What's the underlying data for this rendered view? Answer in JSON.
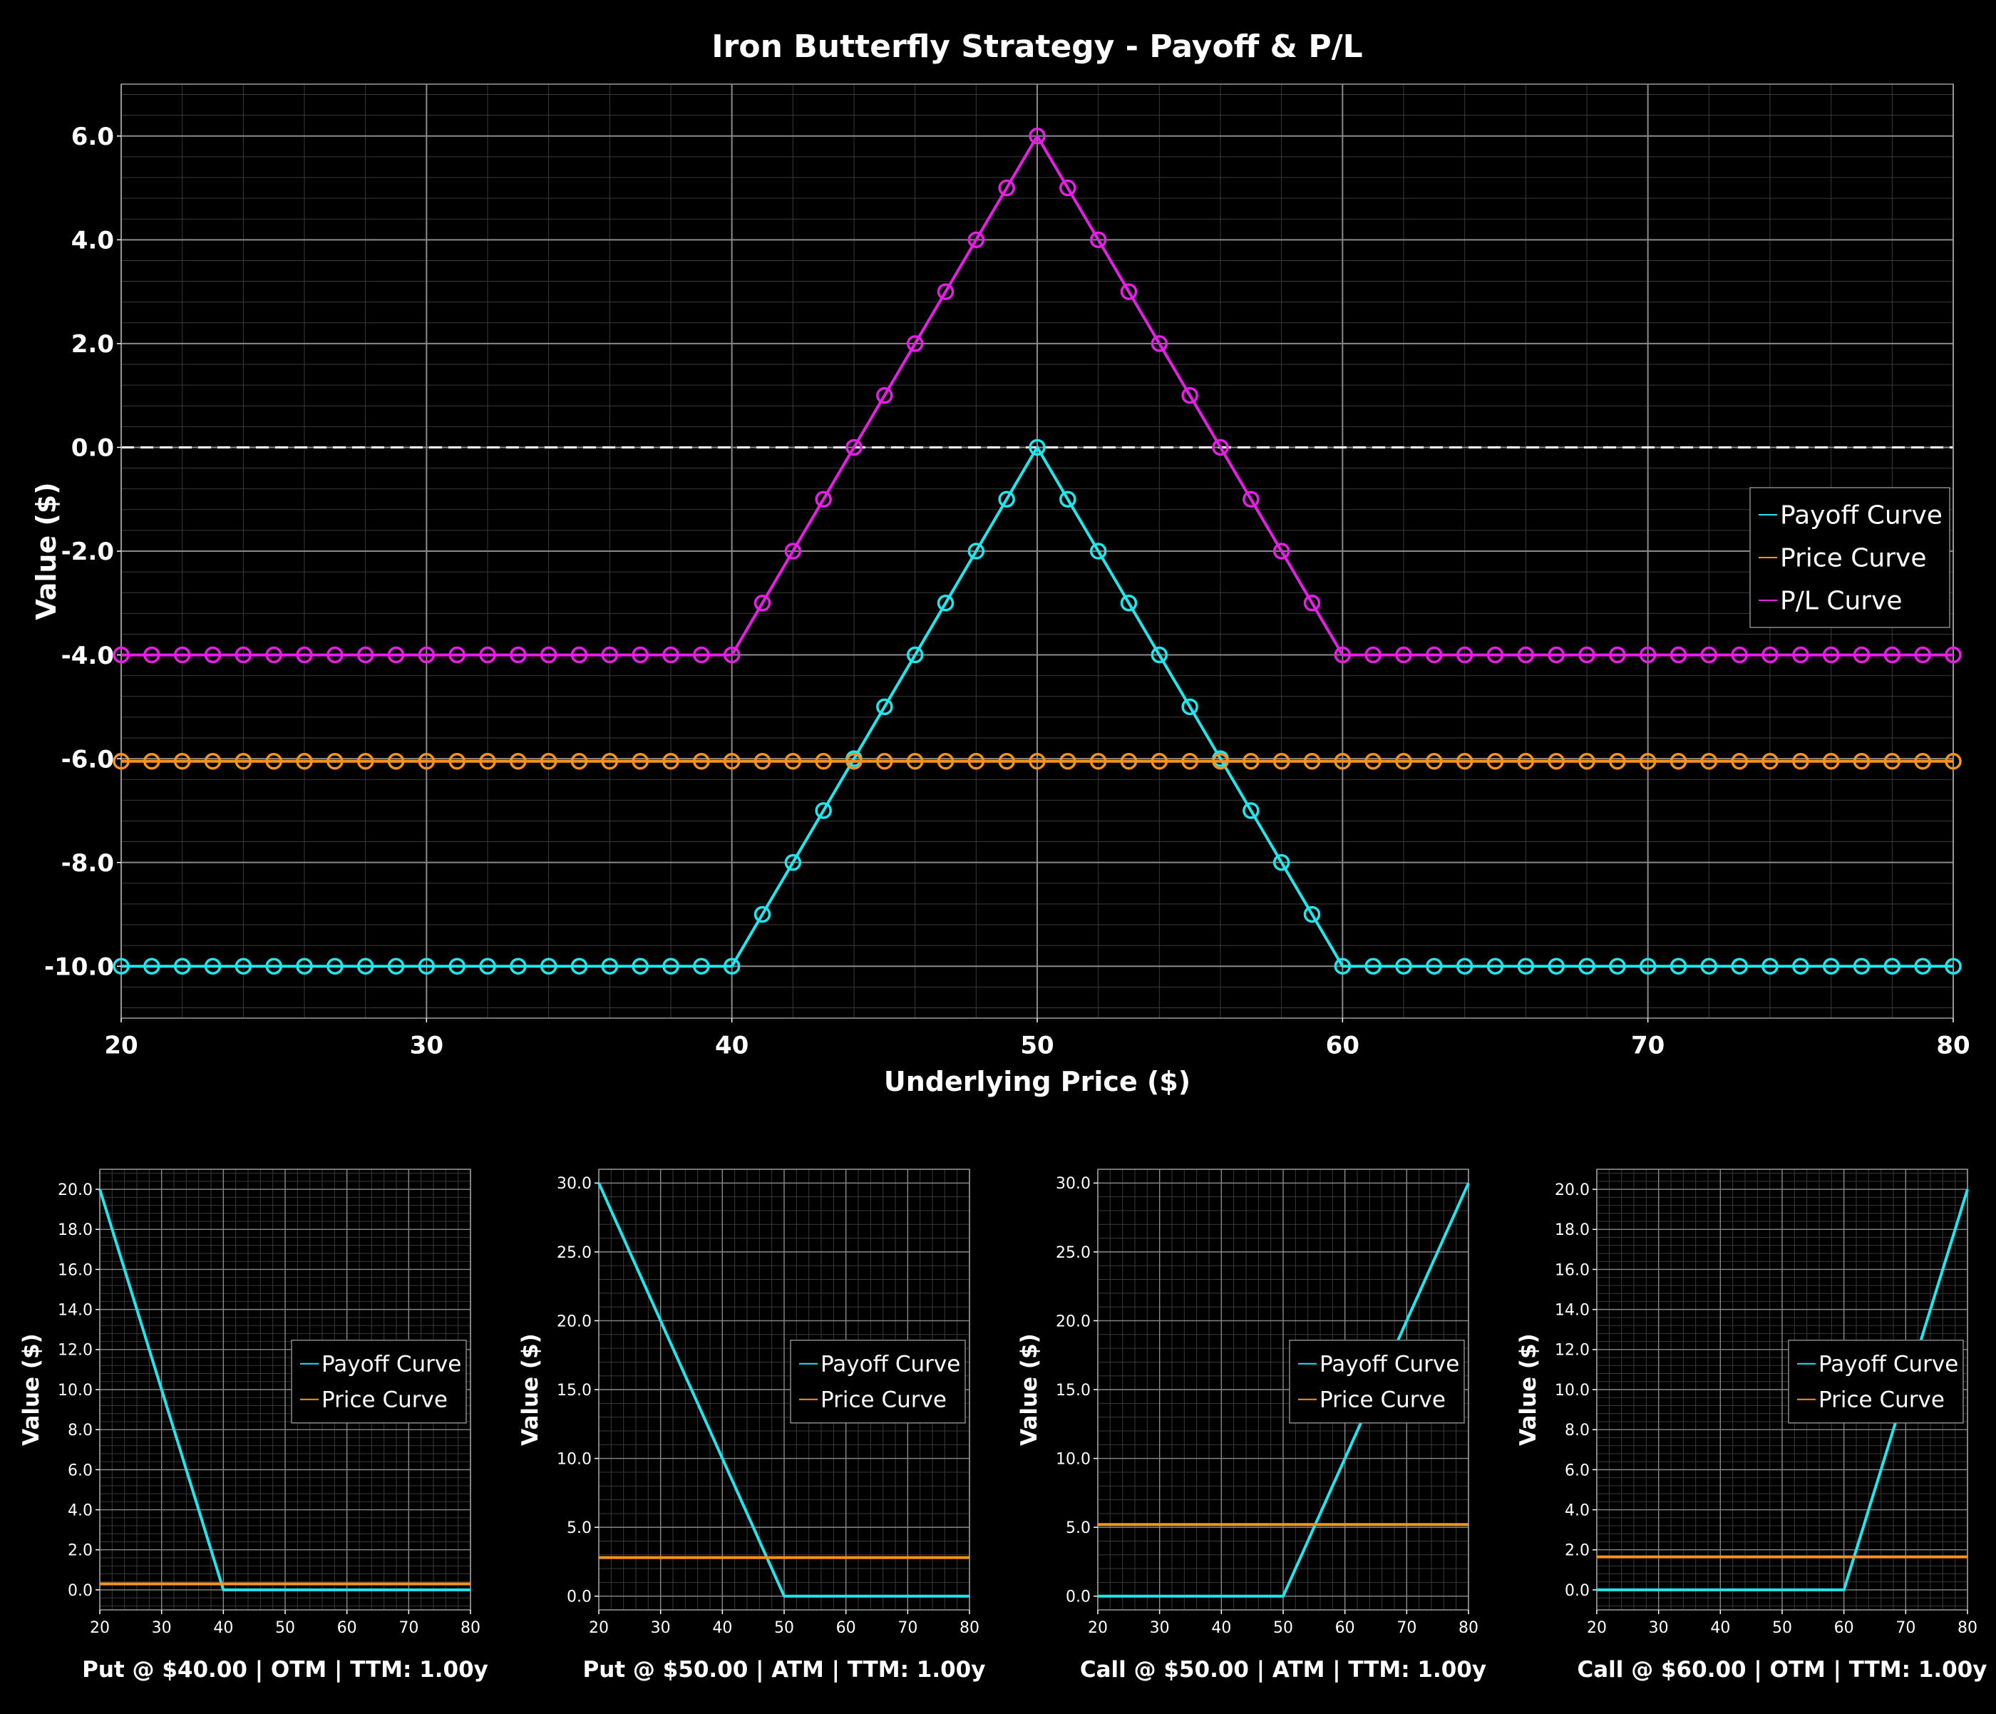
{
  "chart_data": [
    {
      "id": "main",
      "type": "line",
      "title": "Iron Butterfly Strategy - Payoff & P/L",
      "xlabel": "Underlying Price ($)",
      "ylabel": "Value ($)",
      "xlim": [
        20,
        80
      ],
      "ylim": [
        -11,
        7
      ],
      "xticks": [
        20,
        30,
        40,
        50,
        60,
        70,
        80
      ],
      "yticks": [
        -10,
        -8,
        -6,
        -4,
        -2,
        0,
        2,
        4,
        6
      ],
      "grid": true,
      "zero_line": true,
      "legend_position": "center-right",
      "markers": true,
      "series": [
        {
          "name": "Payoff Curve",
          "color": "#1ee8ee",
          "kind": "butterfly",
          "strikes": [
            40,
            50,
            60
          ],
          "offset": -10
        },
        {
          "name": "Price Curve",
          "color": "#f7931e",
          "kind": "constant",
          "value": -6.05
        },
        {
          "name": "P/L Curve",
          "color": "#e61ee6",
          "kind": "butterfly",
          "strikes": [
            40,
            50,
            60
          ],
          "offset": -4
        }
      ]
    },
    {
      "id": "leg1",
      "type": "line",
      "title": "Put @ $40.00 | OTM | TTM: 1.00y",
      "ylabel": "Value ($)",
      "xlim": [
        20,
        80
      ],
      "ylim": [
        -1,
        21
      ],
      "xticks": [
        20,
        30,
        40,
        50,
        60,
        70,
        80
      ],
      "yticks": [
        0,
        2,
        4,
        6,
        8,
        10,
        12,
        14,
        16,
        18,
        20
      ],
      "grid": true,
      "legend_position": "center-right",
      "series": [
        {
          "name": "Payoff Curve",
          "color": "#1ee8ee",
          "kind": "put",
          "strike": 40
        },
        {
          "name": "Price Curve",
          "color": "#f7931e",
          "kind": "constant",
          "value": 0.3
        }
      ]
    },
    {
      "id": "leg2",
      "type": "line",
      "title": "Put @ $50.00 | ATM | TTM: 1.00y",
      "ylabel": "Value ($)",
      "xlim": [
        20,
        80
      ],
      "ylim": [
        -1,
        31
      ],
      "xticks": [
        20,
        30,
        40,
        50,
        60,
        70,
        80
      ],
      "yticks": [
        0,
        5,
        10,
        15,
        20,
        25,
        30
      ],
      "grid": true,
      "legend_position": "center-right",
      "series": [
        {
          "name": "Payoff Curve",
          "color": "#1ee8ee",
          "kind": "put",
          "strike": 50
        },
        {
          "name": "Price Curve",
          "color": "#f7931e",
          "kind": "constant",
          "value": 2.8
        }
      ]
    },
    {
      "id": "leg3",
      "type": "line",
      "title": "Call @ $50.00 | ATM | TTM: 1.00y",
      "ylabel": "Value ($)",
      "xlim": [
        20,
        80
      ],
      "ylim": [
        -1,
        31
      ],
      "xticks": [
        20,
        30,
        40,
        50,
        60,
        70,
        80
      ],
      "yticks": [
        0,
        5,
        10,
        15,
        20,
        25,
        30
      ],
      "grid": true,
      "legend_position": "center-right",
      "series": [
        {
          "name": "Payoff Curve",
          "color": "#1ee8ee",
          "kind": "call",
          "strike": 50
        },
        {
          "name": "Price Curve",
          "color": "#f7931e",
          "kind": "constant",
          "value": 5.2
        }
      ]
    },
    {
      "id": "leg4",
      "type": "line",
      "title": "Call @ $60.00 | OTM | TTM: 1.00y",
      "ylabel": "Value ($)",
      "xlim": [
        20,
        80
      ],
      "ylim": [
        -1,
        21
      ],
      "xticks": [
        20,
        30,
        40,
        50,
        60,
        70,
        80
      ],
      "yticks": [
        0,
        2,
        4,
        6,
        8,
        10,
        12,
        14,
        16,
        18,
        20
      ],
      "grid": true,
      "legend_position": "center-right",
      "series": [
        {
          "name": "Payoff Curve",
          "color": "#1ee8ee",
          "kind": "call",
          "strike": 60
        },
        {
          "name": "Price Curve",
          "color": "#f7931e",
          "kind": "constant",
          "value": 1.65
        }
      ]
    }
  ]
}
